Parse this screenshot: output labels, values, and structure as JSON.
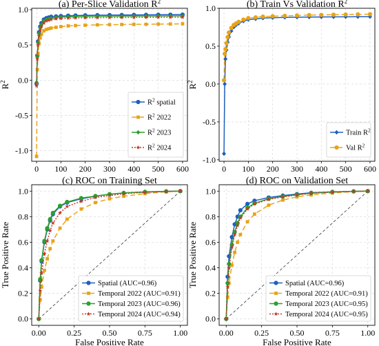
{
  "chart_data": [
    {
      "type": "line",
      "title_main": "(a) Per-Slice Validation R",
      "title_sup": "2",
      "xlabel": "",
      "ylabel_main": "R",
      "ylabel_sup": "2",
      "xlim": [
        -20,
        620
      ],
      "ylim": [
        -1.15,
        1.02
      ],
      "xticks": [
        0,
        100,
        200,
        300,
        400,
        500,
        600
      ],
      "yticks": [
        -1.0,
        -0.5,
        0.0,
        0.5,
        1.0
      ],
      "ytick_labels": [
        "-1.0",
        "-0.5",
        "0.0",
        "0.5",
        "1.0"
      ],
      "grid": true,
      "legend_position": "lower-right",
      "series": [
        {
          "name": "R² spatial",
          "name_main": "R",
          "name_sup": "2",
          "name_rest": " spatial",
          "color": "#1f5fbf",
          "dash": "",
          "marker": "circle",
          "x": [
            0,
            3,
            6,
            10,
            15,
            20,
            30,
            40,
            50,
            60,
            80,
            100,
            130,
            160,
            200,
            250,
            300,
            350,
            400,
            450,
            500,
            550,
            600
          ],
          "y": [
            -0.05,
            0.35,
            0.55,
            0.68,
            0.76,
            0.81,
            0.86,
            0.88,
            0.89,
            0.9,
            0.905,
            0.91,
            0.915,
            0.918,
            0.92,
            0.922,
            0.924,
            0.925,
            0.926,
            0.927,
            0.928,
            0.929,
            0.93
          ]
        },
        {
          "name": "R² 2022",
          "name_main": "R",
          "name_sup": "2",
          "name_rest": " 2022",
          "color": "#e8a317",
          "dash": "7 4",
          "marker": "square",
          "x": [
            0,
            3,
            6,
            10,
            15,
            20,
            30,
            40,
            50,
            60,
            80,
            100,
            130,
            160,
            200,
            250,
            300,
            350,
            400,
            450,
            500,
            550,
            600
          ],
          "y": [
            -1.08,
            0.15,
            0.38,
            0.52,
            0.6,
            0.65,
            0.7,
            0.72,
            0.73,
            0.74,
            0.75,
            0.76,
            0.77,
            0.775,
            0.78,
            0.785,
            0.788,
            0.79,
            0.792,
            0.793,
            0.795,
            0.797,
            0.8
          ]
        },
        {
          "name": "R² 2023",
          "name_main": "R",
          "name_sup": "2",
          "name_rest": " 2023",
          "color": "#2ca02c",
          "dash": "",
          "marker": "diamond",
          "x": [
            0,
            3,
            6,
            10,
            15,
            20,
            30,
            40,
            50,
            60,
            80,
            100,
            130,
            160,
            200,
            250,
            300,
            350,
            400,
            450,
            500,
            550,
            600
          ],
          "y": [
            -0.03,
            0.33,
            0.53,
            0.66,
            0.74,
            0.79,
            0.84,
            0.86,
            0.87,
            0.88,
            0.89,
            0.895,
            0.9,
            0.903,
            0.905,
            0.907,
            0.908,
            0.909,
            0.91,
            0.91,
            0.911,
            0.912,
            0.912
          ]
        },
        {
          "name": "R² 2024",
          "name_main": "R",
          "name_sup": "2",
          "name_rest": " 2024",
          "color": "#c0392b",
          "dash": "2 2",
          "marker": "star",
          "x": [
            0,
            3,
            6,
            10,
            15,
            20,
            30,
            40,
            50,
            60,
            80,
            100,
            130,
            160,
            200,
            250,
            300,
            350,
            400,
            450,
            500,
            550,
            600
          ],
          "y": [
            -0.08,
            0.3,
            0.5,
            0.63,
            0.71,
            0.76,
            0.81,
            0.84,
            0.85,
            0.86,
            0.87,
            0.875,
            0.88,
            0.883,
            0.885,
            0.887,
            0.888,
            0.889,
            0.89,
            0.891,
            0.892,
            0.893,
            0.893
          ]
        }
      ]
    },
    {
      "type": "line",
      "title_main": "(b) Train Vs Validation R",
      "title_sup": "2",
      "xlabel": "",
      "ylabel_main": "R",
      "ylabel_sup": "2",
      "xlim": [
        -20,
        620
      ],
      "ylim": [
        -1.02,
        1.0
      ],
      "xticks": [
        0,
        100,
        200,
        300,
        400,
        500,
        600
      ],
      "yticks": [
        -1.0,
        -0.5,
        0.0,
        0.5,
        1.0
      ],
      "ytick_labels": [
        "-1.0",
        "-0.5",
        "0.0",
        "0.5",
        "1.0"
      ],
      "grid": true,
      "legend_position": "lower-right",
      "series": [
        {
          "name": "Train R²",
          "name_main": "Train R",
          "name_sup": "2",
          "name_rest": "",
          "color": "#1f5fbf",
          "dash": "",
          "marker": "diamond",
          "x": [
            0,
            3,
            6,
            10,
            15,
            20,
            30,
            40,
            50,
            60,
            80,
            100,
            130,
            160,
            200,
            250,
            300,
            350,
            400,
            450,
            500,
            550,
            600
          ],
          "y": [
            -0.92,
            0.0,
            0.33,
            0.45,
            0.55,
            0.62,
            0.7,
            0.75,
            0.78,
            0.8,
            0.83,
            0.85,
            0.86,
            0.87,
            0.875,
            0.88,
            0.882,
            0.884,
            0.885,
            0.886,
            0.887,
            0.888,
            0.889
          ]
        },
        {
          "name": "Val R²",
          "name_main": "Val R",
          "name_sup": "2",
          "name_rest": "",
          "color": "#e8a317",
          "dash": "7 4",
          "marker": "circle",
          "x": [
            0,
            3,
            6,
            10,
            15,
            20,
            30,
            40,
            50,
            60,
            80,
            100,
            130,
            160,
            200,
            250,
            300,
            350,
            400,
            450,
            500,
            550,
            600
          ],
          "y": [
            0.05,
            0.4,
            0.46,
            0.54,
            0.62,
            0.68,
            0.74,
            0.78,
            0.8,
            0.82,
            0.85,
            0.87,
            0.88,
            0.89,
            0.895,
            0.9,
            0.905,
            0.91,
            0.912,
            0.915,
            0.918,
            0.92,
            0.922
          ]
        }
      ]
    },
    {
      "type": "line",
      "title_main": "(c) ROC on Training Set",
      "title_sup": "",
      "xlabel": "False Positive Rate",
      "ylabel_main": "True Positive Rate",
      "ylabel_sup": "",
      "xlim": [
        -0.05,
        1.05
      ],
      "ylim": [
        -0.05,
        1.05
      ],
      "xticks": [
        0.0,
        0.25,
        0.5,
        0.75,
        1.0
      ],
      "xtick_labels": [
        "0.00",
        "0.25",
        "0.50",
        "0.75",
        "1.00"
      ],
      "yticks": [
        0.0,
        0.2,
        0.4,
        0.6,
        0.8,
        1.0
      ],
      "ytick_labels": [
        "0.0",
        "0.2",
        "0.4",
        "0.6",
        "0.8",
        "1.0"
      ],
      "grid": true,
      "legend_position": "lower-right",
      "diagonal": true,
      "series": [
        {
          "name": "Spatial (AUC=0.96)",
          "color": "#1f5fbf",
          "dash": "",
          "marker": "circle",
          "x": [
            0,
            0.01,
            0.02,
            0.04,
            0.06,
            0.08,
            0.1,
            0.15,
            0.2,
            0.3,
            0.4,
            0.5,
            0.6,
            0.75,
            0.9,
            1.0
          ],
          "y": [
            0,
            0.3,
            0.45,
            0.6,
            0.7,
            0.77,
            0.82,
            0.88,
            0.91,
            0.94,
            0.96,
            0.975,
            0.985,
            0.993,
            0.998,
            1.0
          ]
        },
        {
          "name": "Temporal 2022 (AUC=0.91)",
          "color": "#e8a317",
          "dash": "7 4",
          "marker": "square",
          "x": [
            0,
            0.01,
            0.02,
            0.04,
            0.06,
            0.08,
            0.1,
            0.15,
            0.2,
            0.3,
            0.4,
            0.5,
            0.6,
            0.75,
            0.9,
            1.0
          ],
          "y": [
            0,
            0.15,
            0.25,
            0.38,
            0.47,
            0.55,
            0.61,
            0.71,
            0.78,
            0.86,
            0.91,
            0.94,
            0.96,
            0.98,
            0.995,
            1.0
          ]
        },
        {
          "name": "Temporal 2023 (AUC=0.96)",
          "color": "#2ca02c",
          "dash": "",
          "marker": "circle",
          "x": [
            0,
            0.01,
            0.02,
            0.04,
            0.06,
            0.08,
            0.1,
            0.15,
            0.2,
            0.3,
            0.4,
            0.5,
            0.6,
            0.75,
            0.9,
            1.0
          ],
          "y": [
            0,
            0.31,
            0.46,
            0.61,
            0.71,
            0.78,
            0.83,
            0.885,
            0.915,
            0.945,
            0.962,
            0.976,
            0.986,
            0.994,
            0.998,
            1.0
          ]
        },
        {
          "name": "Temporal 2024 (AUC=0.94)",
          "color": "#c0392b",
          "dash": "2 2",
          "marker": "star",
          "x": [
            0,
            0.01,
            0.02,
            0.04,
            0.06,
            0.08,
            0.1,
            0.15,
            0.2,
            0.3,
            0.4,
            0.5,
            0.6,
            0.75,
            0.9,
            1.0
          ],
          "y": [
            0,
            0.22,
            0.36,
            0.51,
            0.61,
            0.69,
            0.75,
            0.83,
            0.88,
            0.92,
            0.95,
            0.965,
            0.98,
            0.99,
            0.997,
            1.0
          ]
        }
      ]
    },
    {
      "type": "line",
      "title_main": "(d) ROC on Validation Set",
      "title_sup": "",
      "xlabel": "False Positive Rate",
      "ylabel_main": "True Positive Rate",
      "ylabel_sup": "",
      "xlim": [
        -0.05,
        1.05
      ],
      "ylim": [
        -0.05,
        1.05
      ],
      "xticks": [
        0.0,
        0.25,
        0.5,
        0.75,
        1.0
      ],
      "xtick_labels": [
        "0.00",
        "0.25",
        "0.50",
        "0.75",
        "1.00"
      ],
      "yticks": [
        0.0,
        0.2,
        0.4,
        0.6,
        0.8,
        1.0
      ],
      "ytick_labels": [
        "0.0",
        "0.2",
        "0.4",
        "0.6",
        "0.8",
        "1.0"
      ],
      "grid": true,
      "legend_position": "lower-right",
      "diagonal": true,
      "series": [
        {
          "name": "Spatial (AUC=0.96)",
          "color": "#1f5fbf",
          "dash": "",
          "marker": "circle",
          "x": [
            0,
            0.01,
            0.02,
            0.04,
            0.06,
            0.08,
            0.1,
            0.15,
            0.2,
            0.3,
            0.4,
            0.5,
            0.6,
            0.75,
            0.9,
            1.0
          ],
          "y": [
            0,
            0.33,
            0.49,
            0.64,
            0.74,
            0.8,
            0.85,
            0.9,
            0.925,
            0.95,
            0.965,
            0.977,
            0.987,
            0.994,
            0.998,
            1.0
          ]
        },
        {
          "name": "Temporal 2022 (AUC=0.91)",
          "color": "#e8a317",
          "dash": "7 4",
          "marker": "square",
          "x": [
            0,
            0.01,
            0.02,
            0.04,
            0.06,
            0.08,
            0.1,
            0.15,
            0.2,
            0.3,
            0.4,
            0.5,
            0.6,
            0.75,
            0.9,
            1.0
          ],
          "y": [
            0,
            0.17,
            0.28,
            0.42,
            0.52,
            0.6,
            0.66,
            0.76,
            0.82,
            0.89,
            0.93,
            0.955,
            0.97,
            0.985,
            0.996,
            1.0
          ]
        },
        {
          "name": "Temporal 2023 (AUC=0.95)",
          "color": "#2ca02c",
          "dash": "",
          "marker": "circle",
          "x": [
            0,
            0.01,
            0.02,
            0.04,
            0.06,
            0.08,
            0.1,
            0.15,
            0.2,
            0.3,
            0.4,
            0.5,
            0.6,
            0.75,
            0.9,
            1.0
          ],
          "y": [
            0,
            0.28,
            0.43,
            0.58,
            0.68,
            0.75,
            0.8,
            0.87,
            0.905,
            0.94,
            0.958,
            0.972,
            0.984,
            0.993,
            0.998,
            1.0
          ]
        },
        {
          "name": "Temporal 2024 (AUC=0.95)",
          "color": "#c0392b",
          "dash": "2 2",
          "marker": "star",
          "x": [
            0,
            0.01,
            0.02,
            0.04,
            0.06,
            0.08,
            0.1,
            0.15,
            0.2,
            0.3,
            0.4,
            0.5,
            0.6,
            0.75,
            0.9,
            1.0
          ],
          "y": [
            0,
            0.25,
            0.4,
            0.56,
            0.66,
            0.73,
            0.79,
            0.86,
            0.9,
            0.935,
            0.955,
            0.97,
            0.983,
            0.992,
            0.998,
            1.0
          ]
        }
      ]
    }
  ]
}
